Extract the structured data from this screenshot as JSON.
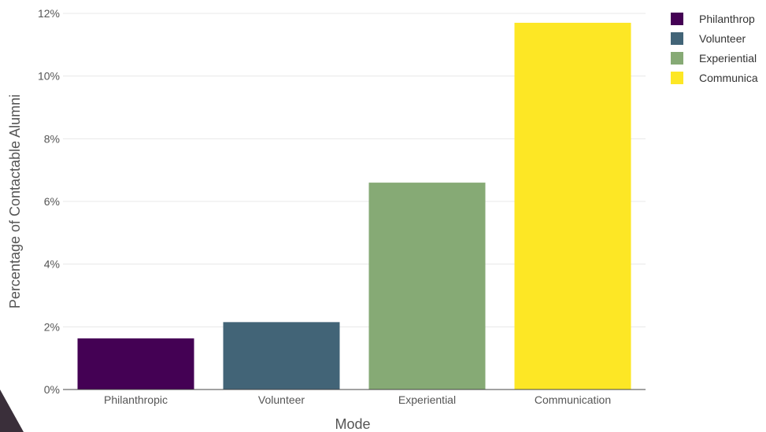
{
  "chart_data": {
    "type": "bar",
    "categories": [
      "Philanthropic",
      "Volunteer",
      "Experiential",
      "Communication"
    ],
    "values": [
      1.63,
      2.15,
      6.6,
      11.7
    ],
    "colors": [
      "#440154",
      "#426477",
      "#86aa75",
      "#fde725"
    ],
    "xlabel": "Mode",
    "ylabel": "Percentage of Contactable Alumni",
    "ylim": [
      0,
      12
    ],
    "yticks": [
      "0%",
      "2%",
      "4%",
      "6%",
      "8%",
      "10%",
      "12%"
    ],
    "grid": true,
    "legend": {
      "placement": "top-right",
      "entries": [
        "Philanthrop",
        "Volunteer",
        "Experiential",
        "Communica"
      ]
    }
  }
}
